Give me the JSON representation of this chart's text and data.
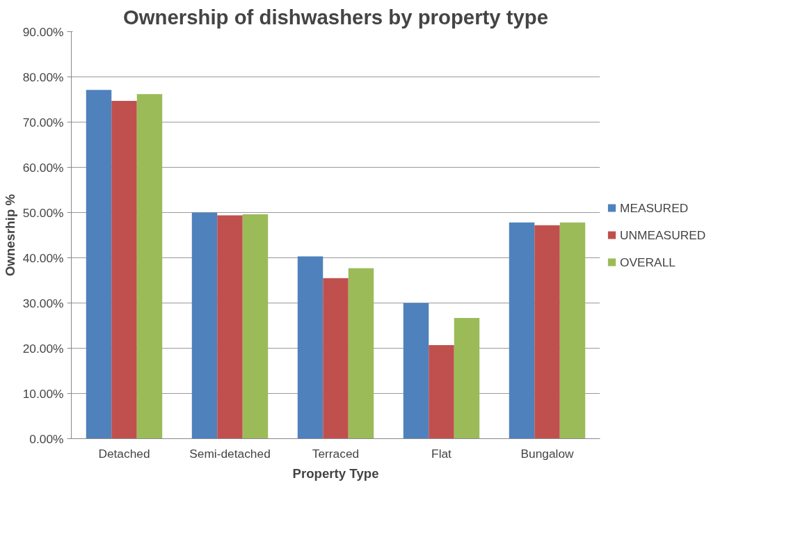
{
  "chart_data": {
    "type": "bar",
    "title": "Ownership of dishwashers by property type",
    "xlabel": "Property Type",
    "ylabel": "Ownesrhip %",
    "categories": [
      "Detached",
      "Semi-detached",
      "Terraced",
      "Flat",
      "Bungalow"
    ],
    "series": [
      {
        "name": "MEASURED",
        "color": "#4f81bd",
        "values": [
          77.1,
          50.0,
          40.3,
          30.0,
          47.8
        ]
      },
      {
        "name": "UNMEASURED",
        "color": "#c0504d",
        "values": [
          74.7,
          49.4,
          35.5,
          20.7,
          47.2
        ]
      },
      {
        "name": "OVERALL",
        "color": "#9bbb59",
        "values": [
          76.2,
          49.6,
          37.7,
          26.7,
          47.8
        ]
      }
    ],
    "ylim": [
      0,
      90
    ],
    "yticks": [
      {
        "value": 0,
        "label": "0.00%"
      },
      {
        "value": 10,
        "label": "10.00%"
      },
      {
        "value": 20,
        "label": "20.00%"
      },
      {
        "value": 30,
        "label": "30.00%"
      },
      {
        "value": 40,
        "label": "40.00%"
      },
      {
        "value": 50,
        "label": "50.00%"
      },
      {
        "value": 60,
        "label": "60.00%"
      },
      {
        "value": 70,
        "label": "70.00%"
      },
      {
        "value": 80,
        "label": "80.00%"
      },
      {
        "value": 90,
        "label": "90.00%"
      }
    ],
    "grid": "y",
    "legend": "right"
  }
}
